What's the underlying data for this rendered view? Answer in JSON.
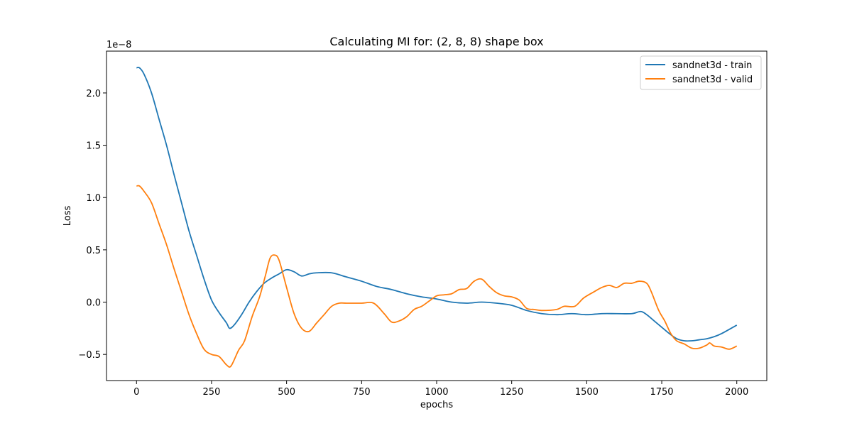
{
  "chart_data": {
    "type": "line",
    "title": "Calculating MI for: (2, 8, 8) shape box",
    "xlabel": "epochs",
    "ylabel": "Loss",
    "y_scale_label": "1e−8",
    "xlim": [
      -100,
      2100
    ],
    "ylim": [
      -0.75,
      2.4
    ],
    "x_ticks": [
      0,
      250,
      500,
      750,
      1000,
      1250,
      1500,
      1750,
      2000
    ],
    "x_tick_labels": [
      "0",
      "250",
      "500",
      "750",
      "1000",
      "1250",
      "1500",
      "1750",
      "2000"
    ],
    "y_ticks": [
      -0.5,
      0.0,
      0.5,
      1.0,
      1.5,
      2.0
    ],
    "y_tick_labels": [
      "−0.5",
      "0.0",
      "0.5",
      "1.0",
      "1.5",
      "2.0"
    ],
    "grid": false,
    "legend_position": "top-right",
    "series": [
      {
        "name": "sandnet3d - train",
        "color": "#1f77b4",
        "points": [
          [
            0,
            2.24
          ],
          [
            10,
            2.24
          ],
          [
            25,
            2.18
          ],
          [
            50,
            2.0
          ],
          [
            75,
            1.75
          ],
          [
            100,
            1.5
          ],
          [
            125,
            1.22
          ],
          [
            150,
            0.95
          ],
          [
            175,
            0.68
          ],
          [
            200,
            0.45
          ],
          [
            225,
            0.22
          ],
          [
            250,
            0.02
          ],
          [
            275,
            -0.1
          ],
          [
            300,
            -0.2
          ],
          [
            310,
            -0.25
          ],
          [
            325,
            -0.22
          ],
          [
            350,
            -0.12
          ],
          [
            375,
            0.0
          ],
          [
            400,
            0.1
          ],
          [
            425,
            0.18
          ],
          [
            450,
            0.23
          ],
          [
            475,
            0.27
          ],
          [
            500,
            0.31
          ],
          [
            525,
            0.29
          ],
          [
            550,
            0.25
          ],
          [
            575,
            0.27
          ],
          [
            600,
            0.28
          ],
          [
            650,
            0.28
          ],
          [
            700,
            0.24
          ],
          [
            750,
            0.2
          ],
          [
            800,
            0.15
          ],
          [
            850,
            0.12
          ],
          [
            900,
            0.08
          ],
          [
            950,
            0.05
          ],
          [
            1000,
            0.03
          ],
          [
            1050,
            0.0
          ],
          [
            1100,
            -0.01
          ],
          [
            1150,
            0.0
          ],
          [
            1200,
            -0.01
          ],
          [
            1250,
            -0.03
          ],
          [
            1300,
            -0.08
          ],
          [
            1350,
            -0.11
          ],
          [
            1400,
            -0.12
          ],
          [
            1450,
            -0.11
          ],
          [
            1500,
            -0.12
          ],
          [
            1550,
            -0.11
          ],
          [
            1600,
            -0.11
          ],
          [
            1650,
            -0.11
          ],
          [
            1680,
            -0.09
          ],
          [
            1700,
            -0.12
          ],
          [
            1725,
            -0.18
          ],
          [
            1750,
            -0.24
          ],
          [
            1775,
            -0.3
          ],
          [
            1800,
            -0.35
          ],
          [
            1825,
            -0.37
          ],
          [
            1850,
            -0.37
          ],
          [
            1875,
            -0.36
          ],
          [
            1900,
            -0.35
          ],
          [
            1925,
            -0.33
          ],
          [
            1950,
            -0.3
          ],
          [
            2000,
            -0.22
          ]
        ]
      },
      {
        "name": "sandnet3d - valid",
        "color": "#ff7f0e",
        "points": [
          [
            0,
            1.11
          ],
          [
            10,
            1.11
          ],
          [
            25,
            1.06
          ],
          [
            50,
            0.95
          ],
          [
            75,
            0.75
          ],
          [
            100,
            0.55
          ],
          [
            125,
            0.32
          ],
          [
            150,
            0.1
          ],
          [
            175,
            -0.12
          ],
          [
            200,
            -0.3
          ],
          [
            225,
            -0.45
          ],
          [
            250,
            -0.5
          ],
          [
            275,
            -0.52
          ],
          [
            300,
            -0.6
          ],
          [
            315,
            -0.61
          ],
          [
            340,
            -0.46
          ],
          [
            360,
            -0.37
          ],
          [
            385,
            -0.14
          ],
          [
            410,
            0.05
          ],
          [
            430,
            0.26
          ],
          [
            445,
            0.42
          ],
          [
            460,
            0.45
          ],
          [
            475,
            0.4
          ],
          [
            500,
            0.14
          ],
          [
            525,
            -0.11
          ],
          [
            550,
            -0.25
          ],
          [
            575,
            -0.28
          ],
          [
            600,
            -0.2
          ],
          [
            625,
            -0.12
          ],
          [
            650,
            -0.04
          ],
          [
            675,
            -0.01
          ],
          [
            700,
            -0.01
          ],
          [
            750,
            -0.01
          ],
          [
            790,
            -0.01
          ],
          [
            825,
            -0.11
          ],
          [
            850,
            -0.19
          ],
          [
            875,
            -0.18
          ],
          [
            900,
            -0.14
          ],
          [
            925,
            -0.07
          ],
          [
            950,
            -0.04
          ],
          [
            975,
            0.01
          ],
          [
            1000,
            0.06
          ],
          [
            1025,
            0.07
          ],
          [
            1050,
            0.08
          ],
          [
            1075,
            0.12
          ],
          [
            1100,
            0.13
          ],
          [
            1125,
            0.2
          ],
          [
            1150,
            0.22
          ],
          [
            1175,
            0.15
          ],
          [
            1200,
            0.09
          ],
          [
            1225,
            0.06
          ],
          [
            1250,
            0.05
          ],
          [
            1275,
            0.02
          ],
          [
            1300,
            -0.06
          ],
          [
            1325,
            -0.07
          ],
          [
            1350,
            -0.08
          ],
          [
            1400,
            -0.07
          ],
          [
            1425,
            -0.04
          ],
          [
            1460,
            -0.04
          ],
          [
            1490,
            0.04
          ],
          [
            1525,
            0.1
          ],
          [
            1550,
            0.14
          ],
          [
            1575,
            0.16
          ],
          [
            1600,
            0.14
          ],
          [
            1625,
            0.18
          ],
          [
            1650,
            0.18
          ],
          [
            1675,
            0.2
          ],
          [
            1700,
            0.18
          ],
          [
            1715,
            0.1
          ],
          [
            1740,
            -0.08
          ],
          [
            1760,
            -0.18
          ],
          [
            1780,
            -0.3
          ],
          [
            1800,
            -0.37
          ],
          [
            1825,
            -0.4
          ],
          [
            1850,
            -0.44
          ],
          [
            1875,
            -0.44
          ],
          [
            1900,
            -0.41
          ],
          [
            1910,
            -0.39
          ],
          [
            1925,
            -0.42
          ],
          [
            1950,
            -0.43
          ],
          [
            1975,
            -0.45
          ],
          [
            2000,
            -0.42
          ]
        ]
      }
    ]
  }
}
